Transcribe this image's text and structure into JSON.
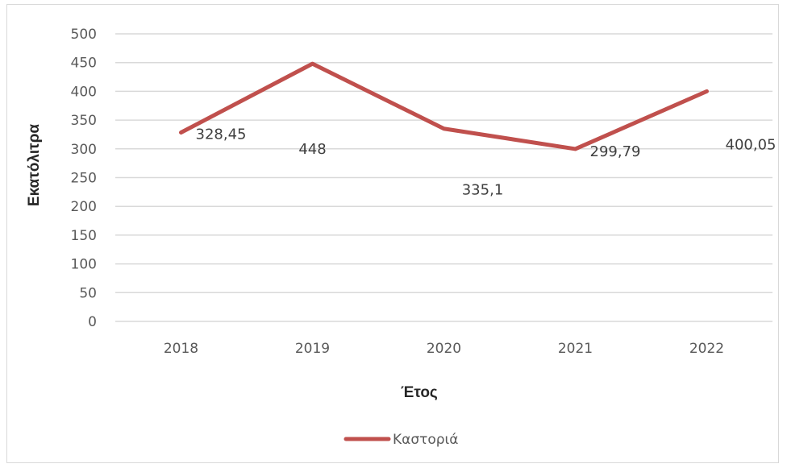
{
  "chart_data": {
    "type": "line",
    "categories": [
      "2018",
      "2019",
      "2020",
      "2021",
      "2022"
    ],
    "series": [
      {
        "name": "Καστοριά",
        "values": [
          328.45,
          448,
          335.1,
          299.79,
          400.05
        ],
        "labels": [
          "328,45",
          "448",
          "335,1",
          "299,79",
          "400,05"
        ],
        "color": "#c0504d"
      }
    ],
    "yticks": [
      "0",
      "50",
      "100",
      "150",
      "200",
      "250",
      "300",
      "350",
      "400",
      "450",
      "500"
    ],
    "ylim": [
      0,
      500
    ],
    "xlabel": "Έτος",
    "ylabel": "Εκατόλιτρα",
    "grid": true,
    "legend": "bottom",
    "gridColor": "#d9d9d9"
  }
}
